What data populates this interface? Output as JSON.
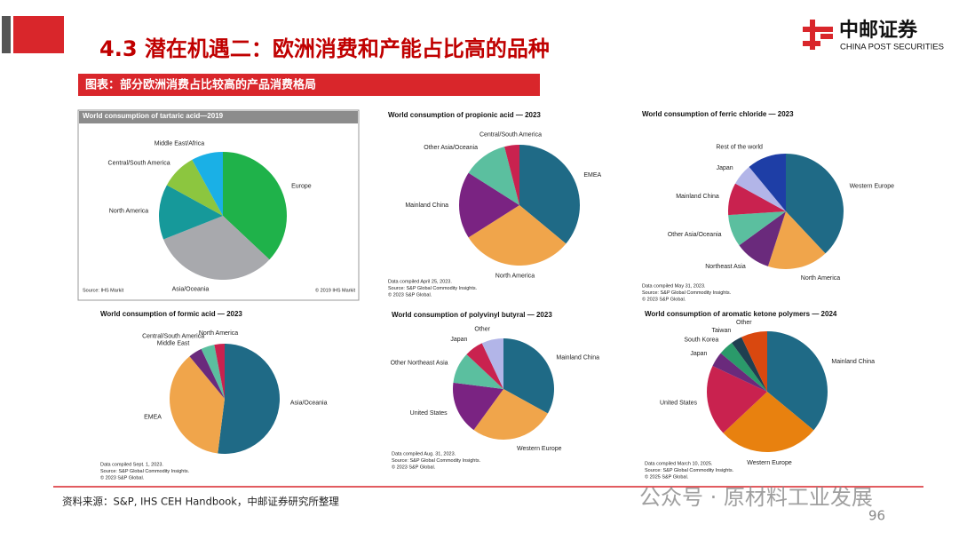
{
  "header": {
    "title": "4.3 潜在机遇二：欧洲消费和产能占比高的品种",
    "subtitle": "图表：部分欧洲消费占比较高的产品消费格局"
  },
  "logo": {
    "name": "中邮证券",
    "english": "CHINA POST SECURITIES"
  },
  "footer": {
    "source": "资料来源：S&P, IHS CEH Handbook，中邮证券研究所整理",
    "page": "96"
  },
  "watermark": "公众号 · 原材料工业发展",
  "chart_data": [
    {
      "type": "pie",
      "title": "World consumption of tartaric acid—2019",
      "categories": [
        "Europe",
        "Asia/Oceania",
        "North America",
        "Central/South America",
        "Middle East/Africa"
      ],
      "values": [
        37,
        32,
        14,
        9,
        8
      ],
      "colors": [
        "#1fb24a",
        "#a8a9ad",
        "#16999a",
        "#8cc63f",
        "#1ab0e6"
      ],
      "notes": [
        "Source: IHS Markit",
        "© 2019 IHS Markit"
      ]
    },
    {
      "type": "pie",
      "title": "World consumption of propionic acid — 2023",
      "categories": [
        "EMEA",
        "North America",
        "Mainland China",
        "Other Asia/Oceania",
        "Central/South America"
      ],
      "values": [
        36,
        30,
        18,
        12,
        4
      ],
      "colors": [
        "#1f6a86",
        "#f0a54b",
        "#7a2382",
        "#5bbf9f",
        "#c9224f"
      ],
      "notes": [
        "Data compiled April 25, 2023.",
        "Source: S&P Global Commodity Insights.",
        "© 2023 S&P Global."
      ]
    },
    {
      "type": "pie",
      "title": "World consumption of ferric chloride — 2023",
      "categories": [
        "Western Europe",
        "North America",
        "Northeast Asia",
        "Other Asia/Oceania",
        "Mainland China",
        "Japan",
        "Rest of the world"
      ],
      "values": [
        38,
        17,
        10,
        9,
        9,
        6,
        11
      ],
      "colors": [
        "#1f6a86",
        "#f0a54b",
        "#6a2a7c",
        "#5bbf9f",
        "#c9224f",
        "#b2b5e8",
        "#1e3ea6"
      ],
      "notes": [
        "Data compiled May 31, 2023.",
        "Source: S&P Global Commodity Insights.",
        "© 2023 S&P Global."
      ]
    },
    {
      "type": "pie",
      "title": "World consumption of formic acid — 2023",
      "categories": [
        "Asia/Oceania",
        "EMEA",
        "Middle East",
        "Central/South America",
        "North America"
      ],
      "values": [
        52,
        37,
        4,
        4,
        3
      ],
      "colors": [
        "#1f6a86",
        "#f0a54b",
        "#6a2a7c",
        "#5bbf9f",
        "#c9224f"
      ],
      "notes": [
        "Data compiled Sept. 1, 2023.",
        "Source: S&P Global Commodity Insights.",
        "© 2023 S&P Global."
      ]
    },
    {
      "type": "pie",
      "title": "World consumption of polyvinyl butyral — 2023",
      "categories": [
        "Mainland China",
        "Western Europe",
        "United States",
        "Other Northeast Asia",
        "Japan",
        "Other"
      ],
      "values": [
        33,
        27,
        17,
        10,
        6,
        7
      ],
      "colors": [
        "#1f6a86",
        "#f0a54b",
        "#7a2382",
        "#5bbf9f",
        "#c9224f",
        "#b2b5e8"
      ],
      "notes": [
        "Data compiled Aug. 31, 2023.",
        "Source: S&P Global Commodity Insights.",
        "© 2023 S&P Global."
      ]
    },
    {
      "type": "pie",
      "title": "World consumption of aromatic ketone polymers — 2024",
      "categories": [
        "Mainland China",
        "Western Europe",
        "United States",
        "Japan",
        "South Korea",
        "Taiwan",
        "Other"
      ],
      "values": [
        36,
        27,
        19,
        4,
        4,
        3,
        7
      ],
      "colors": [
        "#1f6a86",
        "#e8810f",
        "#c9224f",
        "#6a2a7c",
        "#2a9a6a",
        "#1f3f50",
        "#d9480f"
      ],
      "notes": [
        "Data compiled March 10, 2025.",
        "Source: S&P Global Commodity Insights.",
        "© 2025 S&P Global."
      ]
    }
  ]
}
